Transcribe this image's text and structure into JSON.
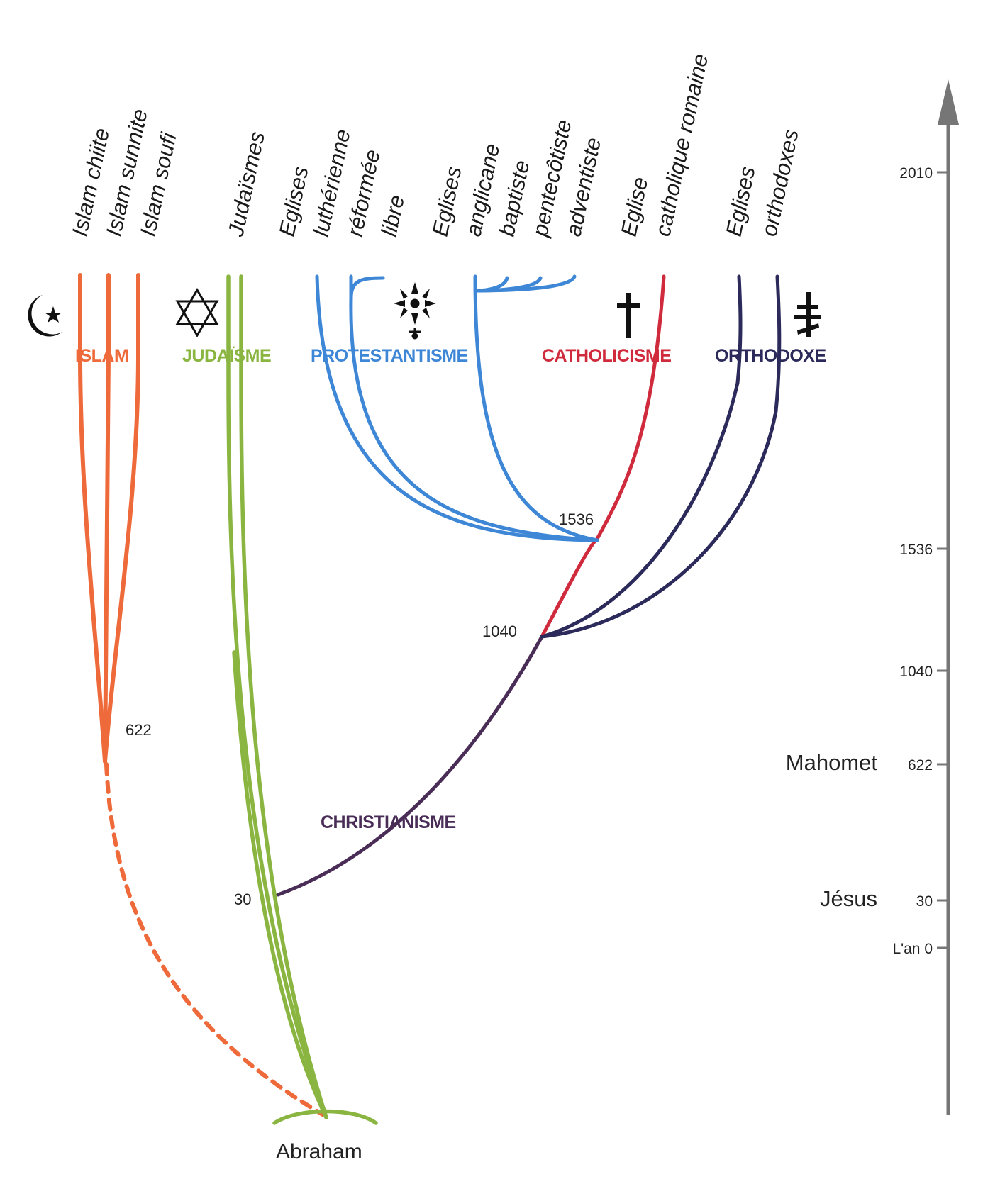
{
  "colors": {
    "islam": "#ee6a3a",
    "judaism": "#8ab541",
    "protestant": "#3e86d6",
    "catholic": "#d02a3d",
    "orthodox": "#2b2a5a",
    "christianity": "#4a2d57",
    "axis": "#767676"
  },
  "branch_labels": {
    "islam": [
      "Islam chiite",
      "Islam sunnite",
      "Islam soufi"
    ],
    "judaism": [
      "Judaïsmes"
    ],
    "protestant_1": [
      "Eglises",
      "luthérienne",
      "réformée",
      "libre"
    ],
    "protestant_2": [
      "Eglises",
      "anglicane",
      "baptiste",
      "pentecôtiste",
      "adventiste"
    ],
    "catholic": [
      "Eglise",
      "catholique romaine"
    ],
    "orthodox": [
      "Eglises",
      "orthodoxes"
    ]
  },
  "groups": {
    "islam": "ISLAM",
    "judaism": "JUDAÏSME",
    "protestant": "PROTESTANTISME",
    "catholic": "CATHOLICISME",
    "orthodox": "ORTHODOXE",
    "christianity": "CHRISTIANISME"
  },
  "symbols": {
    "islam": "crescent-star-icon",
    "judaism": "star-of-david-icon",
    "protestant": "huguenot-cross-icon",
    "catholic": "latin-cross-icon",
    "orthodox": "orthodox-cross-icon"
  },
  "branch_years": {
    "islam": "622",
    "christianity": "30",
    "schism": "1040",
    "reformation": "1536"
  },
  "origin": "Abraham",
  "timeline": {
    "ticks": [
      {
        "year": 2010,
        "label": "2010"
      },
      {
        "year": 1536,
        "label": "1536"
      },
      {
        "year": 1040,
        "label": "1040"
      },
      {
        "year": 622,
        "label": "622",
        "name": "Mahomet"
      },
      {
        "year": 30,
        "label": "30",
        "name": "Jésus"
      },
      {
        "year": 0,
        "label": "L'an 0"
      }
    ]
  }
}
